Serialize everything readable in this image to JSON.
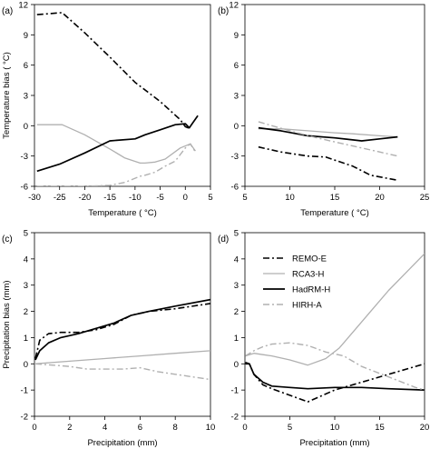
{
  "chart_data": [
    {
      "type": "line",
      "panel_label": "(a)",
      "xlabel": "Temperature ( °C)",
      "ylabel": "Temperature bias ( °C)",
      "xlim": [
        -30,
        5
      ],
      "ylim": [
        -6,
        12
      ],
      "xticks": [
        -30,
        -25,
        -20,
        -15,
        -10,
        -5,
        0,
        5
      ],
      "yticks": [
        -6,
        -3,
        0,
        3,
        6,
        9,
        12
      ],
      "series": [
        {
          "name": "REMO-E",
          "x": [
            -29.5,
            -27,
            -24.5,
            -20,
            -15,
            -10,
            -5,
            -1,
            0,
            1
          ],
          "y": [
            11,
            11.1,
            11.2,
            9.2,
            6.8,
            4.3,
            2.4,
            0.6,
            -0.1,
            -0.3
          ]
        },
        {
          "name": "RCA3-H",
          "x": [
            -29.5,
            -24.5,
            -20,
            -15,
            -12,
            -9,
            -8,
            -6,
            -4,
            -1,
            1,
            2
          ],
          "y": [
            0.1,
            0.1,
            -0.9,
            -2.3,
            -3.2,
            -3.7,
            -3.7,
            -3.6,
            -3.3,
            -2.2,
            -1.8,
            -2.5
          ]
        },
        {
          "name": "HadRM-H",
          "x": [
            -29.5,
            -25,
            -20,
            -15,
            -10,
            -8,
            -5,
            -2,
            0,
            0.8,
            1.5,
            2.5
          ],
          "y": [
            -4.5,
            -3.8,
            -2.7,
            -1.5,
            -1.3,
            -0.9,
            -0.4,
            0.1,
            0.2,
            -0.2,
            0.3,
            1.0
          ]
        },
        {
          "name": "HIRH-A",
          "x": [
            -29.5,
            -25,
            -20,
            -15,
            -12,
            -9,
            -8,
            -6,
            -4,
            -2,
            0,
            1,
            2
          ],
          "y": [
            -6,
            -6,
            -6,
            -5.9,
            -5.6,
            -5,
            -4.9,
            -4.6,
            -4,
            -3.5,
            -2.2,
            -1.8,
            -2.6
          ]
        }
      ]
    },
    {
      "type": "line",
      "panel_label": "(b)",
      "xlabel": "Temperature ( °C)",
      "ylabel": "",
      "xlim": [
        5,
        25
      ],
      "ylim": [
        -6,
        12
      ],
      "xticks": [
        5,
        10,
        15,
        20,
        25
      ],
      "yticks": [
        -6,
        -3,
        0,
        3,
        6,
        9,
        12
      ],
      "series": [
        {
          "name": "REMO-E",
          "x": [
            6.5,
            9,
            12,
            14,
            17,
            19,
            22
          ],
          "y": [
            -2.1,
            -2.6,
            -3,
            -3.1,
            -4,
            -4.9,
            -5.4
          ]
        },
        {
          "name": "RCA3-H",
          "x": [
            6.5,
            9,
            12,
            15,
            17,
            20,
            22
          ],
          "y": [
            -0.3,
            -0.3,
            -0.5,
            -0.7,
            -0.8,
            -1.0,
            -1.1
          ]
        },
        {
          "name": "HadRM-H",
          "x": [
            6.5,
            9,
            12,
            15,
            18,
            20,
            22
          ],
          "y": [
            -0.2,
            -0.5,
            -1.0,
            -1.2,
            -1.5,
            -1.3,
            -1.1
          ]
        },
        {
          "name": "HIRH-A",
          "x": [
            6.5,
            8,
            10,
            13,
            15,
            18,
            20,
            22
          ],
          "y": [
            0.4,
            0,
            -0.5,
            -1.2,
            -1.6,
            -2.2,
            -2.6,
            -3.0
          ]
        }
      ]
    },
    {
      "type": "line",
      "panel_label": "(c)",
      "xlabel": "Precipitation (mm)",
      "ylabel": "Precipitation bias (mm)",
      "xlim": [
        0,
        10
      ],
      "ylim": [
        -2,
        5
      ],
      "xticks": [
        0,
        2,
        4,
        6,
        8,
        10
      ],
      "yticks": [
        -2,
        -1,
        0,
        1,
        2,
        3,
        4,
        5
      ],
      "series": [
        {
          "name": "REMO-E",
          "x": [
            0.05,
            0.3,
            0.8,
            1.5,
            2.5,
            3.5,
            4.5,
            5.5,
            6.5,
            8,
            10
          ],
          "y": [
            0.2,
            0.9,
            1.15,
            1.2,
            1.2,
            1.3,
            1.5,
            1.85,
            2.0,
            2.1,
            2.3
          ]
        },
        {
          "name": "RCA3-H",
          "x": [
            0,
            2,
            4,
            6,
            8,
            10
          ],
          "y": [
            0,
            0.1,
            0.2,
            0.3,
            0.4,
            0.5
          ]
        },
        {
          "name": "HadRM-H",
          "x": [
            0.05,
            0.3,
            0.8,
            1.5,
            2.5,
            3.5,
            4.5,
            5.5,
            6.5,
            8,
            10
          ],
          "y": [
            0.15,
            0.5,
            0.8,
            1.0,
            1.15,
            1.35,
            1.55,
            1.85,
            2.0,
            2.2,
            2.45
          ]
        },
        {
          "name": "HIRH-A",
          "x": [
            0.05,
            1,
            2,
            3,
            4,
            5,
            6,
            7,
            8,
            9,
            10
          ],
          "y": [
            0,
            -0.05,
            -0.1,
            -0.2,
            -0.2,
            -0.2,
            -0.15,
            -0.3,
            -0.4,
            -0.5,
            -0.6
          ]
        }
      ]
    },
    {
      "type": "line",
      "panel_label": "(d)",
      "xlabel": "Precipitation (mm)",
      "ylabel": "",
      "xlim": [
        0,
        20
      ],
      "ylim": [
        -2,
        5
      ],
      "xticks": [
        0,
        5,
        10,
        15,
        20
      ],
      "yticks": [
        -2,
        -1,
        0,
        1,
        2,
        3,
        4,
        5
      ],
      "legend_position": "top-right",
      "series": [
        {
          "name": "REMO-E",
          "x": [
            0.05,
            0.5,
            1,
            2,
            3,
            5,
            7,
            10,
            13,
            16,
            20
          ],
          "y": [
            0,
            0,
            -0.4,
            -0.8,
            -0.95,
            -1.2,
            -1.45,
            -1.0,
            -0.7,
            -0.4,
            0.0
          ]
        },
        {
          "name": "RCA3-H",
          "x": [
            0.05,
            1,
            2,
            3,
            5,
            7,
            9,
            10.5,
            12,
            14,
            16,
            18,
            20
          ],
          "y": [
            0.3,
            0.4,
            0.35,
            0.3,
            0.15,
            -0.05,
            0.2,
            0.6,
            1.2,
            2.0,
            2.8,
            3.5,
            4.2
          ]
        },
        {
          "name": "HadRM-H",
          "x": [
            0.05,
            0.5,
            1,
            2,
            3,
            5,
            7,
            10,
            13,
            16,
            20
          ],
          "y": [
            0.05,
            0,
            -0.4,
            -0.7,
            -0.85,
            -0.9,
            -0.95,
            -0.9,
            -0.9,
            -0.95,
            -1.0
          ]
        },
        {
          "name": "HIRH-A",
          "x": [
            0.05,
            1,
            2,
            3,
            5,
            7,
            9,
            11,
            13,
            16,
            19,
            20
          ],
          "y": [
            0.3,
            0.5,
            0.65,
            0.75,
            0.8,
            0.7,
            0.45,
            0.3,
            -0.1,
            -0.5,
            -0.9,
            -1.0
          ]
        }
      ]
    }
  ],
  "colors": {
    "REMO-E": "#000000",
    "RCA3-H": "#b0b0b0",
    "HadRM-H": "#000000",
    "HIRH-A": "#b0b0b0"
  }
}
